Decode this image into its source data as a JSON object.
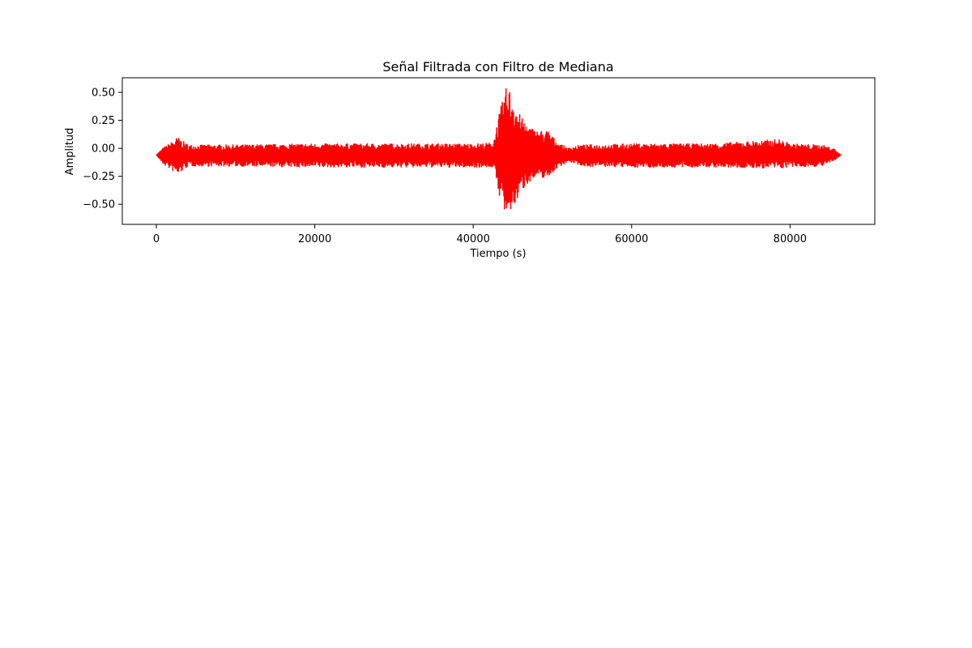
{
  "chart_data": {
    "type": "line",
    "title": "Señal Filtrada con Filtro de Mediana",
    "xlabel": "Tiempo (s)",
    "ylabel": "Amplitud",
    "xlim": [
      -4300,
      90700
    ],
    "ylim": [
      -0.68,
      0.63
    ],
    "xticks": [
      0,
      20000,
      40000,
      60000,
      80000
    ],
    "xtick_labels": [
      "0",
      "20000",
      "40000",
      "60000",
      "80000"
    ],
    "yticks": [
      -0.5,
      -0.25,
      0.0,
      0.25,
      0.5
    ],
    "ytick_labels": [
      "−0.50",
      "−0.25",
      "0.00",
      "0.25",
      "0.50"
    ],
    "grid": false,
    "series": [
      {
        "color": "#ff0000",
        "x_range": [
          0,
          86400
        ],
        "baseline": -0.06,
        "envelope": [
          {
            "x": 0,
            "upper": -0.06,
            "lower": -0.06
          },
          {
            "x": 800,
            "upper": 0.0,
            "lower": -0.14
          },
          {
            "x": 2000,
            "upper": 0.06,
            "lower": -0.2
          },
          {
            "x": 2700,
            "upper": 0.1,
            "lower": -0.24
          },
          {
            "x": 4000,
            "upper": 0.03,
            "lower": -0.16
          },
          {
            "x": 10000,
            "upper": 0.03,
            "lower": -0.16
          },
          {
            "x": 20000,
            "upper": 0.04,
            "lower": -0.17
          },
          {
            "x": 30000,
            "upper": 0.04,
            "lower": -0.17
          },
          {
            "x": 40000,
            "upper": 0.04,
            "lower": -0.17
          },
          {
            "x": 42500,
            "upper": 0.05,
            "lower": -0.17
          },
          {
            "x": 43300,
            "upper": 0.32,
            "lower": -0.42
          },
          {
            "x": 44300,
            "upper": 0.58,
            "lower": -0.67
          },
          {
            "x": 45000,
            "upper": 0.48,
            "lower": -0.55
          },
          {
            "x": 46000,
            "upper": 0.28,
            "lower": -0.4
          },
          {
            "x": 47000,
            "upper": 0.2,
            "lower": -0.3
          },
          {
            "x": 48000,
            "upper": 0.16,
            "lower": -0.27
          },
          {
            "x": 49500,
            "upper": 0.16,
            "lower": -0.26
          },
          {
            "x": 50500,
            "upper": 0.06,
            "lower": -0.18
          },
          {
            "x": 52000,
            "upper": 0.0,
            "lower": -0.12
          },
          {
            "x": 52600,
            "upper": 0.02,
            "lower": -0.13
          },
          {
            "x": 54000,
            "upper": 0.03,
            "lower": -0.16
          },
          {
            "x": 60000,
            "upper": 0.04,
            "lower": -0.17
          },
          {
            "x": 70000,
            "upper": 0.04,
            "lower": -0.17
          },
          {
            "x": 78700,
            "upper": 0.08,
            "lower": -0.18
          },
          {
            "x": 80000,
            "upper": 0.04,
            "lower": -0.17
          },
          {
            "x": 84000,
            "upper": 0.03,
            "lower": -0.16
          },
          {
            "x": 85500,
            "upper": 0.0,
            "lower": -0.12
          },
          {
            "x": 86400,
            "upper": -0.06,
            "lower": -0.06
          }
        ]
      }
    ]
  }
}
